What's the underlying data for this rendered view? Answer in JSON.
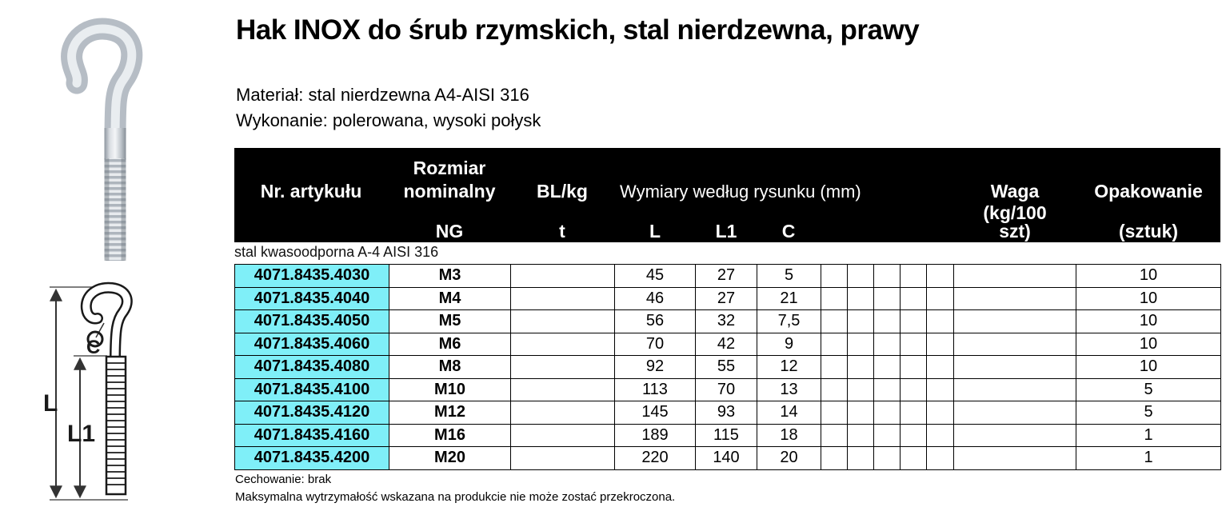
{
  "page": {
    "title": "Hak INOX do śrub rzymskich, stal nierdzewna, prawy",
    "material_line": "Materiał: stal nierdzewna A4-AISI 316",
    "finish_line": "Wykonanie: polerowana, wysoki połysk",
    "footnote1": "Cechowanie: brak",
    "footnote2": "Maksymalna wytrzymałość wskazana na produkcie nie może zostać przekroczona."
  },
  "drawing": {
    "label_L": "L",
    "label_L1": "L1",
    "label_C": "C"
  },
  "table": {
    "group_label": "stal kwasoodporna A-4 AISI 316",
    "header": {
      "article": "Nr. artykułu",
      "size_line1": "Rozmiar",
      "size_line2": "nominalny",
      "size_sub": "NG",
      "bl": "BL/kg",
      "bl_sub": "t",
      "dims": "Wymiary według rysunku (mm)",
      "dim_l": "L",
      "dim_l1": "L1",
      "dim_c": "C",
      "weight_line1": "Waga",
      "weight_line2": "(kg/100",
      "weight_line3": "szt)",
      "pack": "Opakowanie",
      "pack_sub": "(sztuk)"
    },
    "rows": [
      {
        "art": "4071.8435.4030",
        "ng": "M3",
        "t": "",
        "L": "45",
        "L1": "27",
        "C": "5",
        "waga": "",
        "opak": "10"
      },
      {
        "art": "4071.8435.4040",
        "ng": "M4",
        "t": "",
        "L": "46",
        "L1": "27",
        "C": "21",
        "waga": "",
        "opak": "10"
      },
      {
        "art": "4071.8435.4050",
        "ng": "M5",
        "t": "",
        "L": "56",
        "L1": "32",
        "C": "7,5",
        "waga": "",
        "opak": "10"
      },
      {
        "art": "4071.8435.4060",
        "ng": "M6",
        "t": "",
        "L": "70",
        "L1": "42",
        "C": "9",
        "waga": "",
        "opak": "10"
      },
      {
        "art": "4071.8435.4080",
        "ng": "M8",
        "t": "",
        "L": "92",
        "L1": "55",
        "C": "12",
        "waga": "",
        "opak": "10"
      },
      {
        "art": "4071.8435.4100",
        "ng": "M10",
        "t": "",
        "L": "113",
        "L1": "70",
        "C": "13",
        "waga": "",
        "opak": "5"
      },
      {
        "art": "4071.8435.4120",
        "ng": "M12",
        "t": "",
        "L": "145",
        "L1": "93",
        "C": "14",
        "waga": "",
        "opak": "5"
      },
      {
        "art": "4071.8435.4160",
        "ng": "M16",
        "t": "",
        "L": "189",
        "L1": "115",
        "C": "18",
        "waga": "",
        "opak": "1"
      },
      {
        "art": "4071.8435.4200",
        "ng": "M20",
        "t": "",
        "L": "220",
        "L1": "140",
        "C": "20",
        "waga": "",
        "opak": "1"
      }
    ]
  },
  "colors": {
    "article_cell_bg": "#7FEFF8",
    "header_bg": "#000000",
    "header_text": "#FFFFFF"
  }
}
